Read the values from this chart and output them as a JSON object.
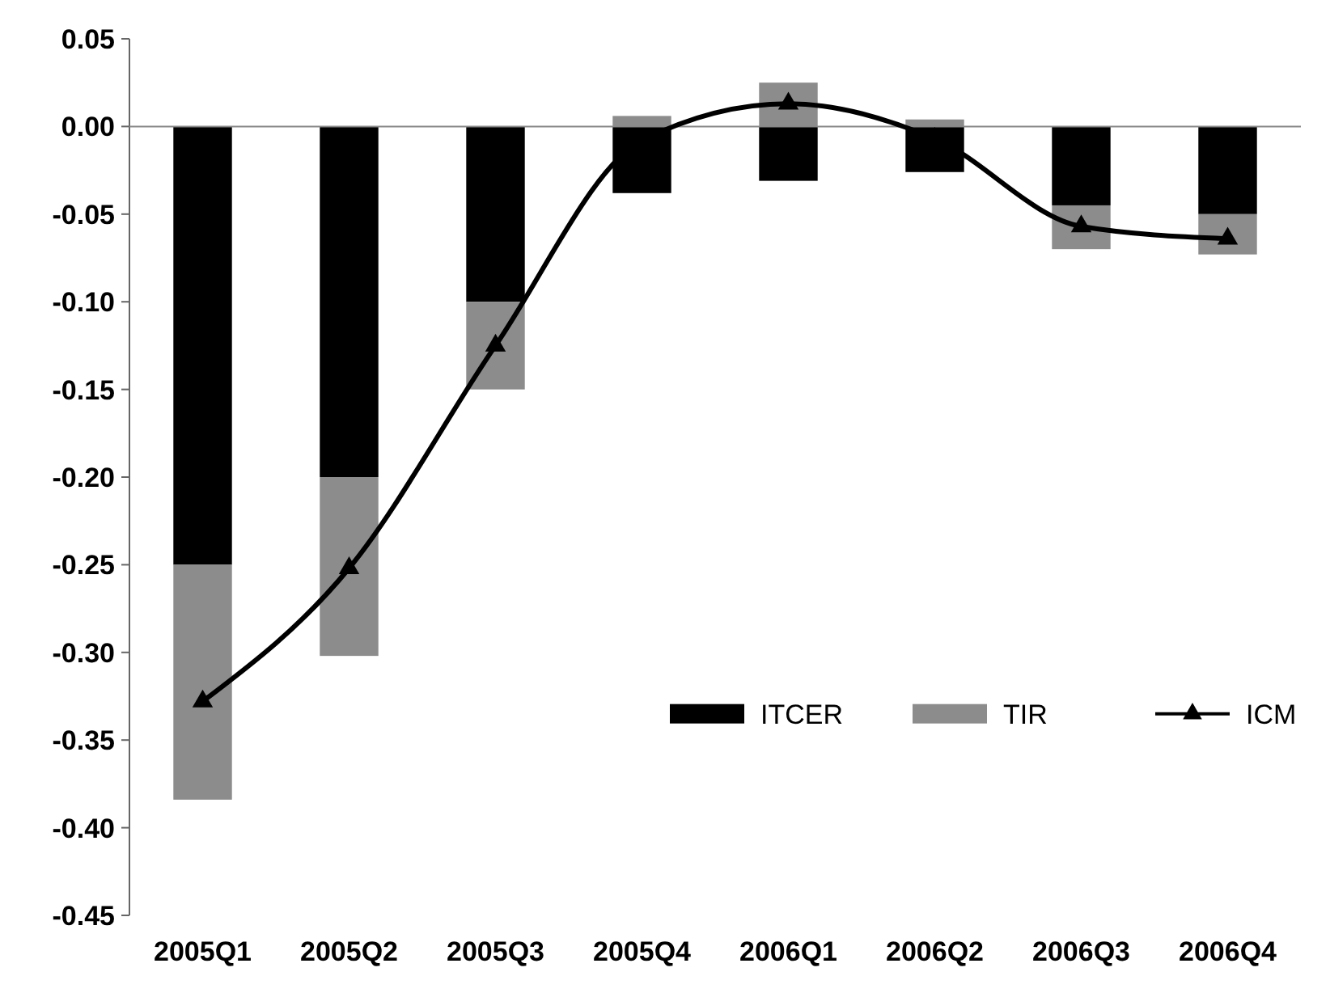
{
  "chart_data": {
    "type": "bar",
    "stacked": true,
    "categories": [
      "2005Q1",
      "2005Q2",
      "2005Q3",
      "2005Q4",
      "2006Q1",
      "2006Q2",
      "2006Q3",
      "2006Q4"
    ],
    "series": [
      {
        "name": "ITCER",
        "color": "#000000",
        "values": [
          -0.25,
          -0.2,
          -0.1,
          -0.038,
          -0.031,
          -0.026,
          -0.045,
          -0.05
        ]
      },
      {
        "name": "TIR",
        "color": "#8c8c8c",
        "values": [
          -0.134,
          -0.102,
          -0.05,
          0.006,
          0.025,
          0.004,
          -0.025,
          -0.023
        ]
      },
      {
        "name": "ICM",
        "type": "line",
        "color": "#000000",
        "marker": "triangle",
        "line_style": "solid",
        "values": [
          -0.328,
          -0.252,
          -0.125,
          -0.008,
          0.013,
          -0.007,
          -0.057,
          -0.064
        ]
      }
    ],
    "ylim": [
      -0.45,
      0.05
    ],
    "yticks": [
      {
        "value": -0.45,
        "label": "-0.45"
      },
      {
        "value": -0.4,
        "label": "-0.40"
      },
      {
        "value": -0.35,
        "label": "-0.35"
      },
      {
        "value": -0.3,
        "label": "-0.30"
      },
      {
        "value": -0.25,
        "label": "-0.25"
      },
      {
        "value": -0.2,
        "label": "-0.20"
      },
      {
        "value": -0.15,
        "label": "-0.15"
      },
      {
        "value": -0.1,
        "label": "-0.10"
      },
      {
        "value": -0.05,
        "label": "-0.05"
      },
      {
        "value": 0,
        "label": "0.00"
      },
      {
        "value": 0.05,
        "label": "0.05"
      }
    ],
    "legend": "right"
  }
}
